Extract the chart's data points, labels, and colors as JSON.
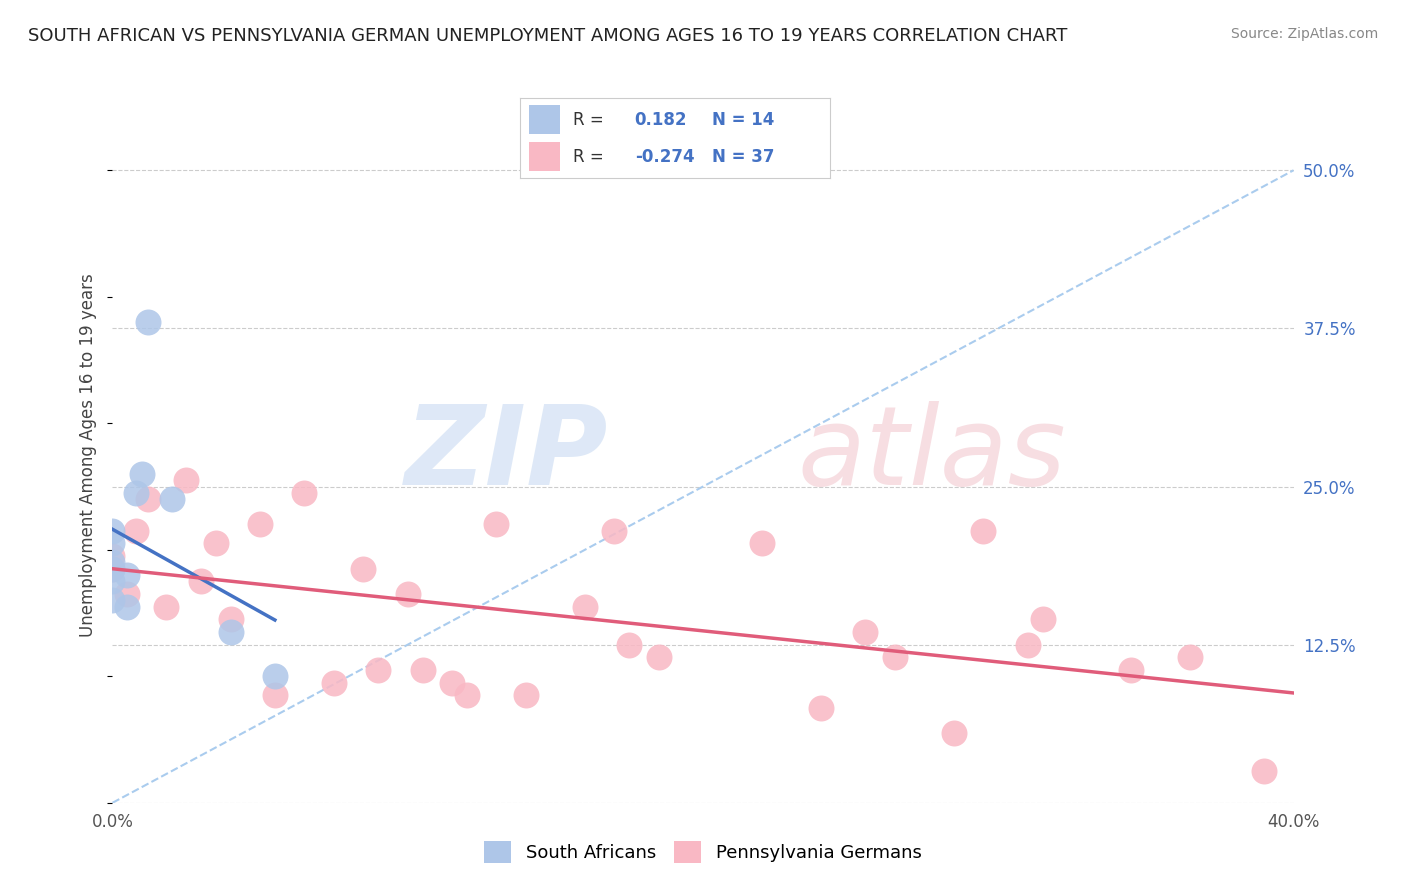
{
  "title": "SOUTH AFRICAN VS PENNSYLVANIA GERMAN UNEMPLOYMENT AMONG AGES 16 TO 19 YEARS CORRELATION CHART",
  "source": "Source: ZipAtlas.com",
  "ylabel": "Unemployment Among Ages 16 to 19 years",
  "xlim": [
    0.0,
    0.4
  ],
  "ylim": [
    0.0,
    0.55
  ],
  "xticks": [
    0.0,
    0.1,
    0.2,
    0.3,
    0.4
  ],
  "xticklabels": [
    "0.0%",
    "",
    "",
    "",
    "40.0%"
  ],
  "ytick_positions": [
    0.0,
    0.125,
    0.25,
    0.375,
    0.5
  ],
  "yticklabels_right": [
    "",
    "12.5%",
    "25.0%",
    "37.5%",
    "50.0%"
  ],
  "background_color": "#ffffff",
  "grid_color": "#cccccc",
  "sa_color": "#aec6e8",
  "pg_color": "#f9b8c4",
  "sa_line_color": "#4472c4",
  "pg_line_color": "#e05c7a",
  "trendline_color": "#aaccee",
  "south_africans_x": [
    0.0,
    0.0,
    0.0,
    0.0,
    0.0,
    0.0,
    0.005,
    0.005,
    0.008,
    0.01,
    0.012,
    0.02,
    0.04,
    0.055
  ],
  "south_africans_y": [
    0.16,
    0.175,
    0.19,
    0.205,
    0.215,
    0.185,
    0.155,
    0.18,
    0.245,
    0.26,
    0.38,
    0.24,
    0.135,
    0.1
  ],
  "penn_german_x": [
    0.0,
    0.0,
    0.005,
    0.008,
    0.012,
    0.018,
    0.025,
    0.03,
    0.035,
    0.04,
    0.05,
    0.055,
    0.065,
    0.075,
    0.085,
    0.09,
    0.1,
    0.105,
    0.115,
    0.12,
    0.13,
    0.14,
    0.16,
    0.17,
    0.175,
    0.185,
    0.22,
    0.24,
    0.255,
    0.265,
    0.285,
    0.295,
    0.31,
    0.315,
    0.345,
    0.365,
    0.39
  ],
  "penn_german_y": [
    0.185,
    0.195,
    0.165,
    0.215,
    0.24,
    0.155,
    0.255,
    0.175,
    0.205,
    0.145,
    0.22,
    0.085,
    0.245,
    0.095,
    0.185,
    0.105,
    0.165,
    0.105,
    0.095,
    0.085,
    0.22,
    0.085,
    0.155,
    0.215,
    0.125,
    0.115,
    0.205,
    0.075,
    0.135,
    0.115,
    0.055,
    0.215,
    0.125,
    0.145,
    0.105,
    0.115,
    0.025
  ]
}
